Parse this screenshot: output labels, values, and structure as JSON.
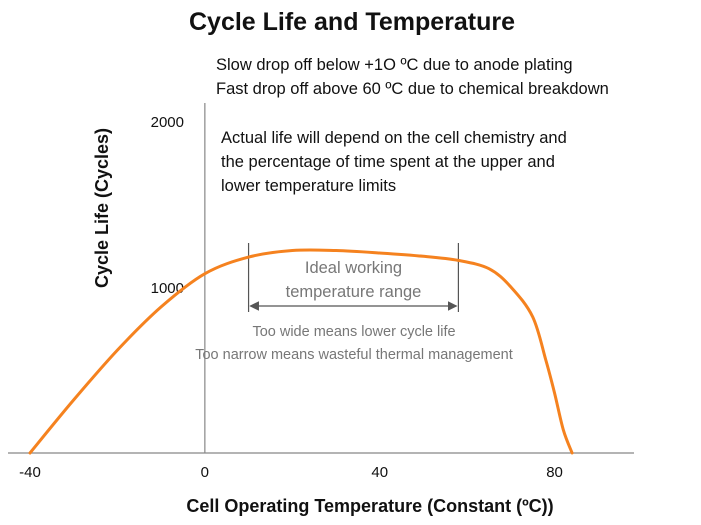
{
  "chart_data": {
    "type": "line",
    "title": "Cycle Life and Temperature",
    "xlabel": "Cell Operating Temperature (Constant (ºC))",
    "ylabel": "Cycle Life (Cycles)",
    "xlim": [
      -40,
      100
    ],
    "ylim": [
      0,
      2000
    ],
    "x_ticks": [
      "-40",
      "0",
      "40",
      "80"
    ],
    "y_ticks": [
      "1000",
      "2000"
    ],
    "grid": false,
    "line_color": "#f5821f",
    "series": [
      {
        "x": [
          -40,
          -30,
          -20,
          -10,
          0,
          10,
          20,
          30,
          40,
          50,
          58,
          65,
          70,
          75,
          78,
          80,
          82,
          84
        ],
        "y": [
          0,
          320,
          620,
          880,
          1080,
          1180,
          1220,
          1220,
          1205,
          1185,
          1160,
          1110,
          1000,
          820,
          560,
          360,
          140,
          0
        ]
      }
    ],
    "annotations": {
      "notes": [
        "Slow drop off below +1O ºC due to anode plating",
        "Fast drop off above 60 ºC due to chemical breakdown"
      ],
      "life_notes": [
        "Actual life will depend on the cell chemistry and",
        "the percentage of time spent at the upper and",
        "lower temperature limits"
      ],
      "range_label": [
        "Ideal working",
        "temperature range"
      ],
      "range_x": [
        10,
        58
      ],
      "width_notes": [
        "Too wide means lower cycle life",
        "Too narrow means wasteful thermal management"
      ]
    }
  }
}
